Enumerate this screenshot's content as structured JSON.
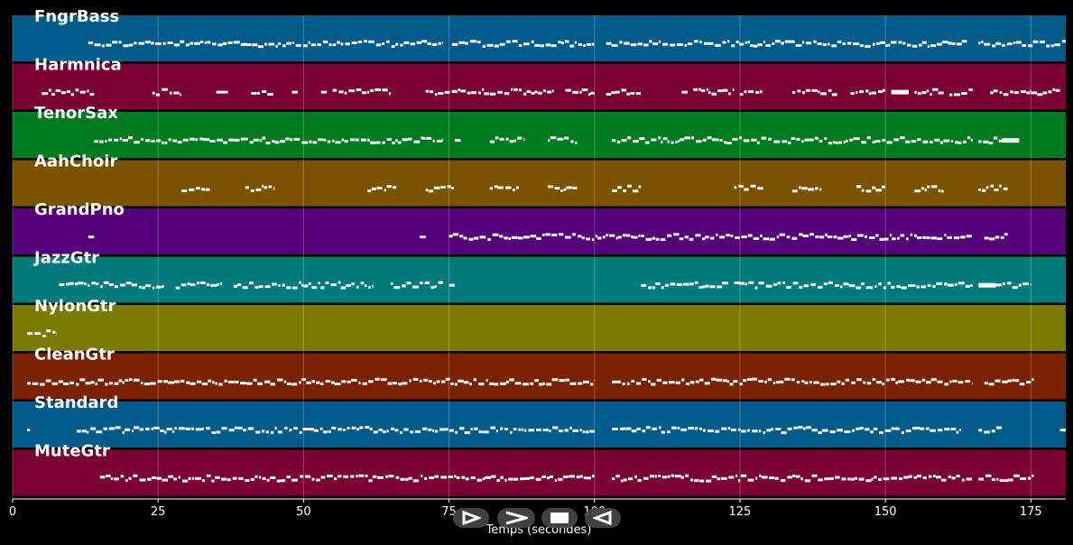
{
  "chart_data": {
    "type": "piano-roll",
    "xlabel": "Temps (secondes)",
    "xlim": [
      0,
      181
    ],
    "xticks": [
      0,
      25,
      50,
      75,
      100,
      125,
      150,
      175
    ],
    "xtick_labels": [
      "0",
      "25",
      "50",
      "75",
      "100",
      "125",
      "150",
      "175"
    ],
    "grid": true,
    "tracks": [
      {
        "name": "FngrBass",
        "color": "#005a8a",
        "segments": [
          [
            13,
            74
          ],
          [
            75.5,
            100
          ],
          [
            102,
            164
          ],
          [
            166,
            171
          ],
          [
            171,
            181
          ]
        ]
      },
      {
        "name": "Harmnica",
        "color": "#7a0032",
        "segments": [
          [
            5,
            14
          ],
          [
            24,
            29
          ],
          [
            35,
            37
          ],
          [
            41,
            45
          ],
          [
            48,
            49
          ],
          [
            53,
            54
          ],
          [
            55,
            65
          ],
          [
            71,
            81
          ],
          [
            81,
            93
          ],
          [
            95,
            100
          ],
          [
            102,
            108
          ],
          [
            115,
            116
          ],
          [
            117,
            124
          ],
          [
            125,
            129
          ],
          [
            134,
            142
          ],
          [
            144,
            150
          ],
          [
            151,
            154
          ],
          [
            155,
            160
          ],
          [
            161,
            165
          ],
          [
            168,
            175
          ],
          [
            175,
            180
          ]
        ]
      },
      {
        "name": "TenorSax",
        "color": "#007a1e",
        "segments": [
          [
            14,
            74
          ],
          [
            76,
            77
          ],
          [
            82,
            88
          ],
          [
            92,
            97
          ],
          [
            103,
            165
          ],
          [
            166,
            170
          ],
          [
            170,
            173
          ]
        ]
      },
      {
        "name": "AahChoir",
        "color": "#7a5200",
        "segments": [
          [
            29,
            34
          ],
          [
            40,
            45
          ],
          [
            61,
            66
          ],
          [
            71,
            76
          ],
          [
            82,
            87
          ],
          [
            92,
            97
          ],
          [
            103,
            108
          ],
          [
            124,
            129
          ],
          [
            134,
            139
          ],
          [
            145,
            150
          ],
          [
            155,
            160
          ],
          [
            166,
            171
          ]
        ]
      },
      {
        "name": "GrandPno",
        "color": "#55007a",
        "segments": [
          [
            13,
            14
          ],
          [
            70,
            71
          ],
          [
            75,
            104
          ],
          [
            104,
            108
          ],
          [
            108,
            119
          ],
          [
            119,
            140
          ],
          [
            140,
            165
          ],
          [
            167,
            171
          ]
        ]
      },
      {
        "name": "JazzGtr",
        "color": "#007a7a",
        "segments": [
          [
            8,
            26
          ],
          [
            28,
            36
          ],
          [
            38,
            50
          ],
          [
            50,
            62
          ],
          [
            65,
            74
          ],
          [
            75,
            76
          ],
          [
            108,
            123
          ],
          [
            124,
            147
          ],
          [
            147,
            165
          ],
          [
            166,
            169
          ],
          [
            169,
            175
          ]
        ]
      },
      {
        "name": "NylonGtr",
        "color": "#7a7a00",
        "segments": [
          [
            2.5,
            7.5
          ]
        ]
      },
      {
        "name": "CleanGtr",
        "color": "#7a2200",
        "segments": [
          [
            2.5,
            100
          ],
          [
            103,
            165
          ],
          [
            167,
            171
          ],
          [
            171,
            175.5
          ]
        ]
      },
      {
        "name": "Standard",
        "color": "#005a8a",
        "segments": [
          [
            2.5,
            3
          ],
          [
            11,
            100
          ],
          [
            103,
            163
          ],
          [
            166,
            170
          ],
          [
            180,
            181
          ]
        ]
      },
      {
        "name": "MuteGtr",
        "color": "#7a0032",
        "segments": [
          [
            15,
            100
          ],
          [
            103,
            165
          ],
          [
            166,
            171
          ],
          [
            171,
            175.5
          ]
        ]
      }
    ]
  },
  "controls": [
    {
      "name": "play-button",
      "glyph": "play-icon"
    },
    {
      "name": "fast-forward-button",
      "glyph": "chevron-right-icon"
    },
    {
      "name": "stop-button",
      "glyph": "stop-icon"
    },
    {
      "name": "rewind-button",
      "glyph": "reverse-play-icon"
    }
  ]
}
